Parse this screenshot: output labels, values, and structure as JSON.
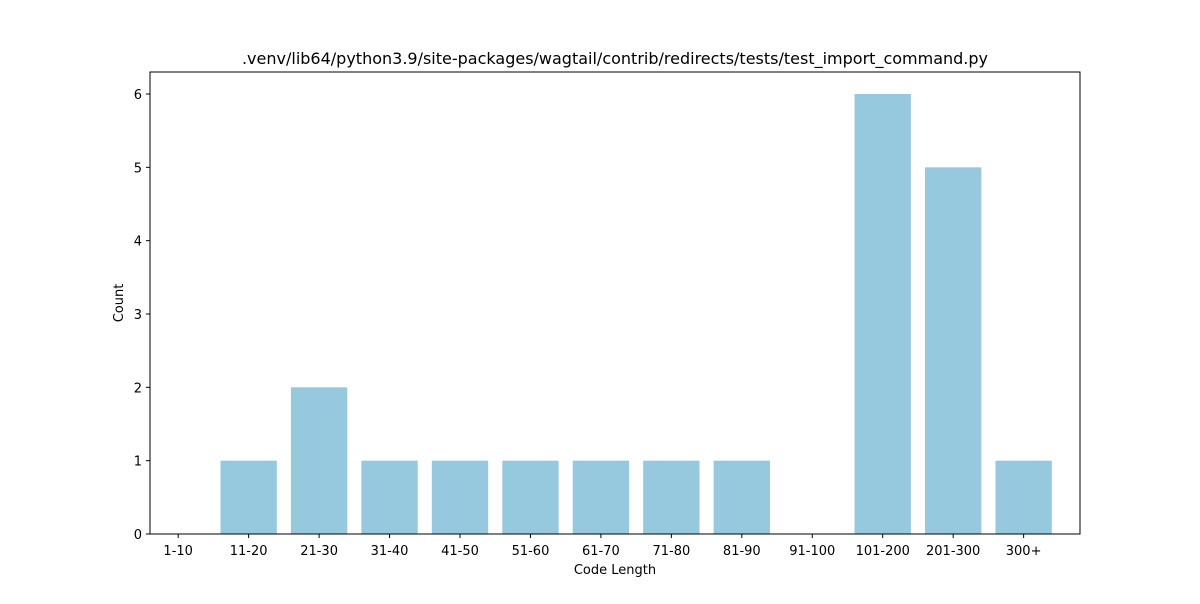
{
  "chart_data": {
    "type": "bar",
    "title": ".venv/lib64/python3.9/site-packages/wagtail/contrib/redirects/tests/test_import_command.py",
    "xlabel": "Code Length",
    "ylabel": "Count",
    "categories": [
      "1-10",
      "11-20",
      "21-30",
      "31-40",
      "41-50",
      "51-60",
      "61-70",
      "71-80",
      "81-90",
      "91-100",
      "101-200",
      "201-300",
      "300+"
    ],
    "values": [
      0,
      1,
      2,
      1,
      1,
      1,
      1,
      1,
      1,
      0,
      6,
      5,
      1
    ],
    "ylim": [
      0,
      6.3
    ],
    "yticks": [
      0,
      1,
      2,
      3,
      4,
      5,
      6
    ],
    "grid": false,
    "legend": "none",
    "bar_color": "#96c9de"
  }
}
